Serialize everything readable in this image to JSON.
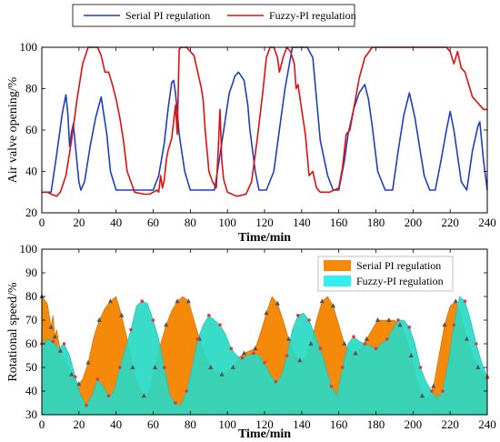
{
  "chart_data": [
    {
      "type": "line",
      "xlabel": "Time/min",
      "ylabel": "Air valve opening/%",
      "xlim": [
        0,
        240
      ],
      "ylim": [
        20,
        100
      ],
      "xticks": [
        0,
        20,
        40,
        60,
        80,
        100,
        120,
        140,
        160,
        180,
        200,
        220,
        240
      ],
      "yticks": [
        20,
        40,
        60,
        80,
        100
      ],
      "legend_position": "top",
      "series": [
        {
          "name": "Serial PI regulation",
          "color": "#1f3fbf",
          "x": [
            0,
            5,
            8,
            11,
            13,
            14,
            15,
            16,
            17,
            18,
            20,
            21,
            23,
            26,
            29,
            32,
            35,
            37,
            40,
            45,
            50,
            55,
            60,
            63,
            66,
            68,
            70,
            71,
            72,
            73,
            74,
            75,
            77,
            80,
            85,
            90,
            93,
            96,
            99,
            101,
            103,
            104,
            106,
            109,
            111,
            112,
            113,
            115,
            117,
            121,
            125,
            128,
            131,
            135,
            136,
            140,
            143,
            146,
            148,
            150,
            154,
            157,
            160,
            163,
            165,
            168,
            171,
            174,
            176,
            178,
            181,
            185,
            189,
            192,
            195,
            198,
            201,
            206,
            209,
            212,
            215,
            218,
            220,
            222,
            226,
            229,
            232,
            235,
            236,
            238,
            240
          ],
          "values": [
            30,
            30,
            48,
            68,
            77,
            68,
            52,
            59,
            63,
            53,
            35,
            31,
            35,
            52,
            66,
            76,
            58,
            40,
            31,
            31,
            31,
            31,
            31,
            38,
            54,
            70,
            83,
            84,
            78,
            69,
            58,
            52,
            40,
            31,
            31,
            31,
            31,
            48,
            66,
            78,
            83,
            86,
            88,
            84,
            72,
            61,
            54,
            40,
            31,
            31,
            40,
            60,
            80,
            100,
            100,
            100,
            100,
            95,
            75,
            55,
            38,
            31,
            31,
            45,
            58,
            70,
            78,
            82,
            75,
            62,
            40,
            31,
            31,
            50,
            67,
            78,
            66,
            38,
            31,
            31,
            45,
            60,
            69,
            60,
            35,
            31,
            50,
            62,
            64,
            45,
            31
          ]
        },
        {
          "name": "Fuzzy-PI regulation",
          "color": "#e01010",
          "x": [
            0,
            3,
            5,
            8,
            10,
            13,
            16,
            19,
            22,
            25,
            27,
            30,
            32,
            34,
            36,
            38,
            40,
            42,
            44,
            46,
            50,
            55,
            58,
            60,
            62,
            63,
            64,
            65,
            66,
            67,
            68,
            70,
            72,
            73,
            74,
            75,
            76,
            78,
            80,
            82,
            84,
            86,
            87,
            88,
            90,
            92,
            94,
            95,
            96,
            97,
            98,
            100,
            105,
            110,
            113,
            116,
            119,
            121,
            123,
            125,
            127,
            128,
            130,
            132,
            134,
            136,
            137,
            138,
            140,
            142,
            144,
            146,
            148,
            150,
            155,
            160,
            162,
            164,
            166,
            168,
            171,
            174,
            178,
            185,
            195,
            205,
            215,
            218,
            220,
            222,
            224,
            226,
            228,
            230,
            232,
            234,
            236,
            238,
            240
          ],
          "values": [
            30,
            30,
            29,
            28,
            30,
            38,
            55,
            75,
            92,
            100,
            100,
            100,
            96,
            88,
            88,
            82,
            75,
            66,
            55,
            40,
            30,
            29,
            29,
            30,
            31,
            30,
            38,
            32,
            36,
            45,
            50,
            56,
            72,
            58,
            99,
            100,
            100,
            100,
            98,
            96,
            88,
            80,
            74,
            60,
            40,
            35,
            32,
            50,
            70,
            45,
            36,
            30,
            28,
            29,
            35,
            55,
            78,
            95,
            100,
            100,
            95,
            88,
            95,
            100,
            98,
            92,
            80,
            82,
            70,
            58,
            38,
            40,
            32,
            30,
            30,
            32,
            42,
            58,
            60,
            70,
            85,
            95,
            100,
            100,
            100,
            100,
            100,
            100,
            98,
            92,
            98,
            90,
            88,
            82,
            76,
            74,
            72,
            70,
            70
          ]
        }
      ]
    },
    {
      "type": "area",
      "xlabel": "Time/min",
      "ylabel": "Rotational speed/%",
      "xlim": [
        0,
        240
      ],
      "ylim": [
        30,
        100
      ],
      "xticks": [
        0,
        20,
        40,
        60,
        80,
        100,
        120,
        140,
        160,
        180,
        200,
        220,
        240
      ],
      "yticks": [
        30,
        40,
        50,
        60,
        70,
        80,
        90,
        100
      ],
      "legend_position": "top-right",
      "series": [
        {
          "name": "Serial PI regulation",
          "color": "#f58a0a",
          "x": [
            0,
            3,
            5,
            6,
            7,
            8,
            10,
            13,
            16,
            18,
            20,
            22,
            25,
            28,
            31,
            34,
            37,
            40,
            43,
            46,
            49,
            52,
            55,
            58,
            61,
            64,
            67,
            70,
            73,
            76,
            79,
            82,
            85,
            88,
            91,
            94,
            97,
            100,
            103,
            106,
            109,
            112,
            115,
            118,
            121,
            124,
            127,
            130,
            133,
            136,
            139,
            142,
            145,
            148,
            151,
            154,
            157,
            160,
            163,
            166,
            169,
            172,
            175,
            178,
            181,
            184,
            187,
            190,
            193,
            196,
            199,
            202,
            205,
            208,
            211,
            214,
            217,
            220,
            223,
            226,
            229,
            232,
            235,
            238,
            240
          ],
          "values": [
            80,
            77,
            67,
            72,
            63,
            66,
            57,
            52,
            47,
            44,
            43,
            45,
            52,
            63,
            70,
            75,
            78,
            80,
            72,
            62,
            50,
            42,
            38,
            40,
            50,
            60,
            68,
            74,
            78,
            80,
            78,
            70,
            62,
            55,
            50,
            48,
            47,
            48,
            50,
            54,
            56,
            57,
            58,
            65,
            73,
            80,
            77,
            70,
            62,
            56,
            53,
            54,
            60,
            70,
            78,
            80,
            76,
            68,
            60,
            57,
            56,
            58,
            62,
            66,
            70,
            70,
            70,
            70,
            68,
            63,
            55,
            45,
            38,
            37,
            42,
            55,
            68,
            76,
            78,
            72,
            62,
            55,
            50,
            47,
            46
          ]
        },
        {
          "name": "Fuzzy-PI regulation",
          "color": "#33f0f0",
          "x": [
            0,
            3,
            6,
            9,
            12,
            15,
            18,
            21,
            24,
            27,
            30,
            33,
            36,
            39,
            42,
            45,
            48,
            51,
            54,
            57,
            60,
            63,
            66,
            69,
            72,
            75,
            78,
            81,
            84,
            87,
            90,
            93,
            96,
            99,
            102,
            105,
            108,
            111,
            114,
            117,
            120,
            123,
            126,
            129,
            132,
            135,
            138,
            141,
            144,
            147,
            150,
            153,
            156,
            159,
            162,
            165,
            168,
            171,
            174,
            177,
            180,
            183,
            186,
            189,
            192,
            195,
            198,
            201,
            204,
            207,
            210,
            213,
            216,
            219,
            222,
            225,
            228,
            231,
            234,
            237,
            240
          ],
          "values": [
            60,
            62,
            61,
            58,
            60,
            55,
            46,
            38,
            34,
            38,
            45,
            42,
            38,
            40,
            50,
            58,
            66,
            76,
            78,
            77,
            70,
            62,
            50,
            38,
            35,
            34,
            40,
            50,
            62,
            68,
            72,
            70,
            68,
            64,
            58,
            55,
            54,
            55,
            56,
            55,
            52,
            47,
            44,
            46,
            55,
            66,
            72,
            73,
            70,
            64,
            58,
            50,
            42,
            38,
            50,
            60,
            63,
            61,
            60,
            59,
            58,
            60,
            62,
            66,
            70,
            70,
            67,
            60,
            50,
            44,
            40,
            37,
            40,
            52,
            68,
            80,
            78,
            70,
            60,
            52,
            46
          ]
        }
      ]
    }
  ]
}
